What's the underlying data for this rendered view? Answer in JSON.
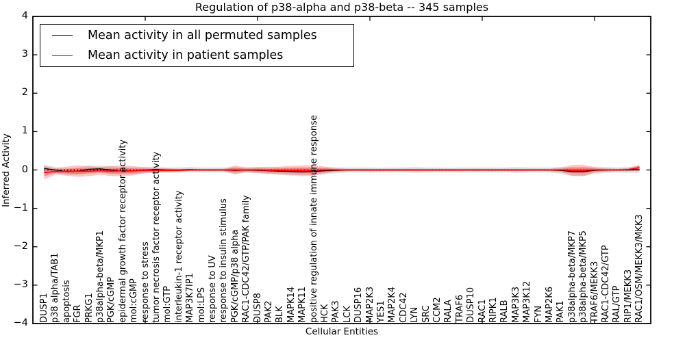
{
  "title": "Regulation of p38-alpha and p38-beta -- 345 samples",
  "legend": {
    "items": [
      {
        "label": "Mean activity in all permuted samples",
        "color": "#000000"
      },
      {
        "label": "Mean activity in patient samples",
        "color": "#ff0000"
      }
    ]
  },
  "axes": {
    "ylabel": "Inferred Activity",
    "xlabel": "Cellular Entities",
    "ytick_labels": [
      "4",
      "3",
      "2",
      "1",
      "0",
      "−1",
      "−2",
      "−3",
      "−4"
    ]
  },
  "chart_data": {
    "type": "line",
    "title": "Regulation of p38-alpha and p38-beta -- 345 samples",
    "xlabel": "Cellular Entities",
    "ylabel": "Inferred Activity",
    "ylim": [
      -4,
      4
    ],
    "ytick_values": [
      4,
      3,
      2,
      1,
      0,
      -1,
      -2,
      -3,
      -4
    ],
    "x_range": [
      0,
      55
    ],
    "xtick_values": [
      10,
      20,
      30,
      40,
      50
    ],
    "category_x_start": 1,
    "grid": false,
    "legend_position": "upper left",
    "zero_line": {
      "color": "#000000",
      "style": "dotted",
      "value": 0
    },
    "categories": [
      "DUSP1",
      "p38 alpha/TAB1",
      "apoptosis",
      "FGR",
      "PRKG1",
      "p38alpha-beta/MKP1",
      "PGK/cGMP",
      "epidermal growth factor receptor activity",
      "mol:cGMP",
      "response to stress",
      "tumor necrosis factor receptor activity",
      "mol:GTP",
      "interleukin-1 receptor activity",
      "MAP3K7IP1",
      "mol:LPS",
      "response to UV",
      "response to insulin stimulus",
      "PGK/cGMP/p38 alpha",
      "RAC1-CDC42/GTP/PAK family",
      "DUSP8",
      "PAK2",
      "BLK",
      "MAPK14",
      "MAPK11",
      "positive regulation of innate immune response",
      "HCK",
      "PAK3",
      "LCK",
      "DUSP16",
      "MAP2K3",
      "YES1",
      "MAP2K4",
      "CDC42",
      "LYN",
      "SRC",
      "CCM2",
      "RALA",
      "TRAF6",
      "DUSP10",
      "RAC1",
      "RIPK1",
      "RALB",
      "MAP3K3",
      "MAP3K12",
      "FYN",
      "MAP2K6",
      "PAK1",
      "p38alpha-beta/MKP7",
      "p38alpha-beta/MKP5",
      "TRAF6/MEKK3",
      "RAC1-CDC42/GTP",
      "RAL/GTP",
      "RIP1/MEKK3",
      "RAC1/OSM/MEKK3/MKK3"
    ],
    "series": [
      {
        "name": "Mean activity in all permuted samples",
        "line_color": "#000000",
        "band_outer": "#e4e4e4",
        "band_inner": "#d8d8d8",
        "mean": [
          0.04,
          0.0,
          -0.04,
          -0.03,
          0.02,
          0.03,
          0.0,
          -0.03,
          -0.02,
          0.0,
          0.01,
          0.0,
          0.0,
          0.01,
          0.0,
          0.0,
          0.0,
          -0.01,
          0.0,
          -0.01,
          -0.02,
          -0.03,
          -0.04,
          -0.05,
          -0.04,
          -0.02,
          -0.01,
          0.0,
          0.0,
          0.0,
          0.0,
          0.0,
          0.0,
          0.0,
          0.0,
          0.0,
          0.0,
          0.0,
          0.0,
          0.0,
          0.0,
          0.0,
          0.0,
          0.0,
          0.0,
          0.0,
          -0.01,
          -0.04,
          -0.04,
          -0.01,
          0.0,
          0.0,
          0.0,
          0.01
        ],
        "band_halfwidth": [
          0.1,
          0.08,
          0.09,
          0.1,
          0.09,
          0.09,
          0.1,
          0.1,
          0.09,
          0.08,
          0.08,
          0.07,
          0.07,
          0.07,
          0.07,
          0.07,
          0.07,
          0.08,
          0.07,
          0.08,
          0.09,
          0.1,
          0.11,
          0.12,
          0.11,
          0.09,
          0.08,
          0.07,
          0.07,
          0.07,
          0.06,
          0.07,
          0.07,
          0.08,
          0.07,
          0.07,
          0.06,
          0.07,
          0.07,
          0.07,
          0.07,
          0.07,
          0.08,
          0.07,
          0.07,
          0.07,
          0.09,
          0.12,
          0.12,
          0.1,
          0.08,
          0.07,
          0.08,
          0.09
        ]
      },
      {
        "name": "Mean activity in patient samples",
        "line_color": "#ff0000",
        "band_outer": "rgba(255,0,0,0.22)",
        "band_inner": "rgba(255,0,0,0.28)",
        "mean": [
          -0.07,
          -0.04,
          -0.03,
          -0.03,
          -0.03,
          -0.02,
          -0.03,
          -0.02,
          -0.02,
          -0.01,
          -0.01,
          -0.01,
          -0.01,
          0.0,
          0.0,
          0.0,
          0.0,
          0.0,
          0.0,
          0.0,
          -0.01,
          -0.01,
          -0.01,
          -0.01,
          -0.01,
          0.0,
          0.0,
          0.0,
          0.0,
          0.0,
          0.0,
          0.0,
          0.0,
          0.0,
          0.0,
          0.0,
          0.0,
          0.0,
          0.0,
          0.0,
          0.0,
          0.0,
          0.0,
          0.0,
          0.0,
          0.0,
          0.0,
          -0.01,
          -0.01,
          0.0,
          0.0,
          0.0,
          0.01,
          0.06
        ],
        "band_halfwidth": [
          0.18,
          0.08,
          0.12,
          0.15,
          0.13,
          0.1,
          0.13,
          0.14,
          0.12,
          0.08,
          0.06,
          0.05,
          0.04,
          0.03,
          0.03,
          0.03,
          0.03,
          0.12,
          0.06,
          0.08,
          0.09,
          0.1,
          0.12,
          0.13,
          0.13,
          0.09,
          0.05,
          0.03,
          0.03,
          0.03,
          0.03,
          0.03,
          0.03,
          0.03,
          0.03,
          0.03,
          0.03,
          0.03,
          0.03,
          0.03,
          0.03,
          0.03,
          0.03,
          0.03,
          0.03,
          0.03,
          0.06,
          0.14,
          0.15,
          0.07,
          0.04,
          0.03,
          0.04,
          0.08
        ]
      }
    ]
  }
}
